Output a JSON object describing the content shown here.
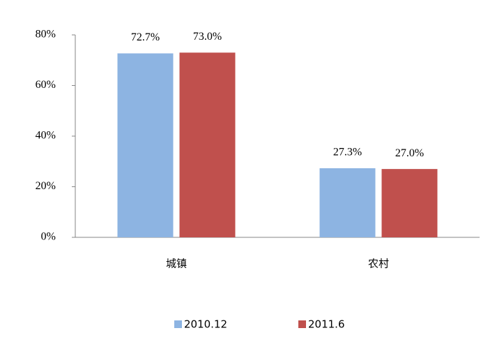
{
  "chart_data": {
    "type": "bar",
    "categories": [
      "城镇",
      "农村"
    ],
    "series": [
      {
        "name": "2010.12",
        "color": "#8db4e2",
        "values": [
          72.7,
          27.3
        ],
        "value_labels": [
          "72.7%",
          "27.3%"
        ]
      },
      {
        "name": "2011.6",
        "color": "#c0504d",
        "values": [
          73.0,
          27.0
        ],
        "value_labels": [
          "73.0%",
          "27.0%"
        ]
      }
    ],
    "ylim": [
      0,
      80
    ],
    "yticks": [
      {
        "value": 0,
        "label": "0%"
      },
      {
        "value": 20,
        "label": "20%"
      },
      {
        "value": 40,
        "label": "40%"
      },
      {
        "value": 60,
        "label": "60%"
      },
      {
        "value": 80,
        "label": "80%"
      }
    ],
    "legend": "bottom"
  }
}
